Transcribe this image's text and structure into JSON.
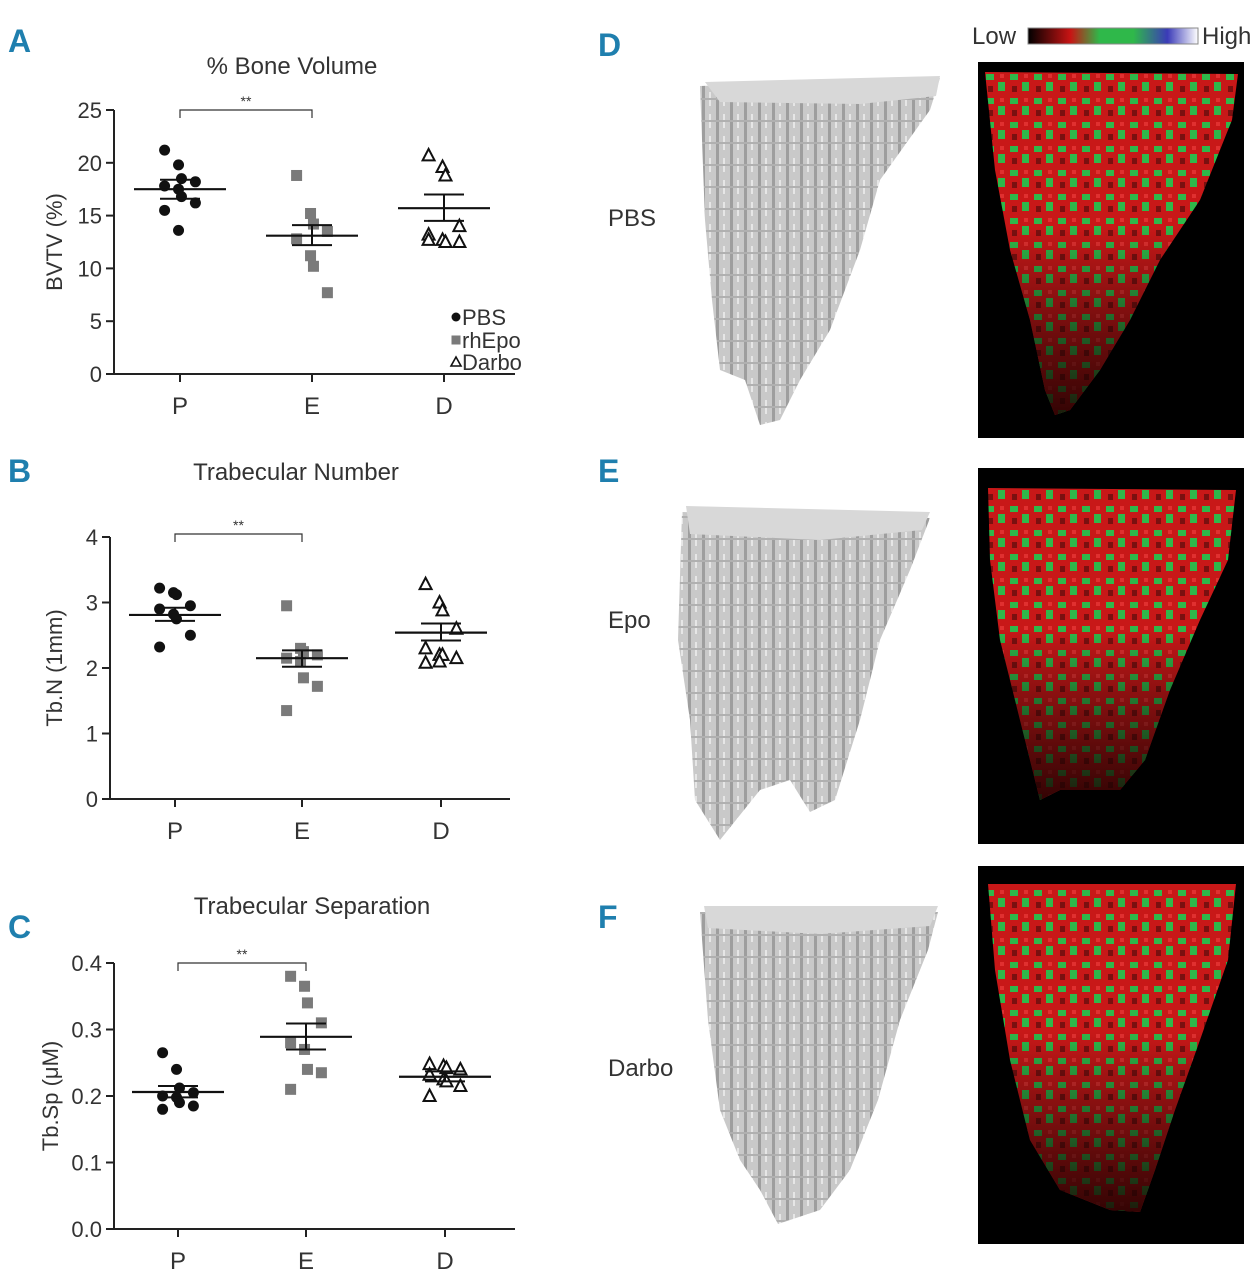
{
  "panel_labels": [
    "A",
    "B",
    "C",
    "D",
    "E",
    "F"
  ],
  "chart_data": [
    {
      "type": "scatter",
      "panel": "A",
      "title": "% Bone Volume",
      "ylabel": "BVTV (%)",
      "xlabel": "",
      "ylim": [
        0,
        25
      ],
      "yticks": [
        0,
        5,
        10,
        15,
        20,
        25
      ],
      "categories": [
        "P",
        "E",
        "D"
      ],
      "significance": {
        "from": "P",
        "to": "E",
        "label": "**"
      },
      "legend": [
        {
          "marker": "circle",
          "label": "PBS"
        },
        {
          "marker": "square",
          "label": "rhEpo"
        },
        {
          "marker": "triangle",
          "label": "Darbo"
        }
      ],
      "series": [
        {
          "name": "PBS",
          "category": "P",
          "marker": "circle",
          "values": [
            21.2,
            19.8,
            18.5,
            18.2,
            17.8,
            17.5,
            16.8,
            16.2,
            15.5,
            13.6
          ],
          "mean": 17.5,
          "sem_low": 16.6,
          "sem_high": 18.4
        },
        {
          "name": "rhEpo",
          "category": "E",
          "marker": "square",
          "values": [
            18.8,
            15.2,
            14.2,
            13.5,
            12.8,
            11.2,
            10.2,
            7.7
          ],
          "mean": 13.1,
          "sem_low": 12.2,
          "sem_high": 14.1
        },
        {
          "name": "Darbo",
          "category": "D",
          "marker": "triangle",
          "values": [
            20.7,
            19.6,
            18.8,
            14.0,
            13.2,
            12.7,
            12.5,
            12.5,
            12.7
          ],
          "mean": 15.7,
          "sem_low": 14.5,
          "sem_high": 17.0
        }
      ]
    },
    {
      "type": "scatter",
      "panel": "B",
      "title": "Trabecular Number",
      "ylabel": "Tb.N (1mm)",
      "xlabel": "",
      "ylim": [
        0,
        4
      ],
      "yticks": [
        0,
        1,
        2,
        3,
        4
      ],
      "categories": [
        "P",
        "E",
        "D"
      ],
      "significance": {
        "from": "P",
        "to": "E",
        "label": "**"
      },
      "series": [
        {
          "name": "PBS",
          "category": "P",
          "marker": "circle",
          "values": [
            3.22,
            3.15,
            3.12,
            2.95,
            2.9,
            2.82,
            2.75,
            2.5,
            2.32
          ],
          "mean": 2.81,
          "sem_low": 2.72,
          "sem_high": 2.92
        },
        {
          "name": "rhEpo",
          "category": "E",
          "marker": "square",
          "values": [
            2.95,
            2.3,
            2.25,
            2.2,
            2.15,
            2.1,
            1.85,
            1.72,
            1.35
          ],
          "mean": 2.15,
          "sem_low": 2.02,
          "sem_high": 2.27
        },
        {
          "name": "Darbo",
          "category": "D",
          "marker": "triangle",
          "values": [
            3.28,
            3.0,
            2.88,
            2.6,
            2.3,
            2.2,
            2.2,
            2.15,
            2.08,
            2.1
          ],
          "mean": 2.54,
          "sem_low": 2.42,
          "sem_high": 2.68
        }
      ]
    },
    {
      "type": "scatter",
      "panel": "C",
      "title": "Trabecular Separation",
      "ylabel": "Tb.Sp (μM)",
      "xlabel": "",
      "ylim": [
        0.0,
        0.4
      ],
      "yticks": [
        "0.0",
        "0.1",
        "0.2",
        "0.3",
        "0.4"
      ],
      "categories": [
        "P",
        "E",
        "D"
      ],
      "significance": {
        "from": "P",
        "to": "E",
        "label": "**"
      },
      "series": [
        {
          "name": "PBS",
          "category": "P",
          "marker": "circle",
          "values": [
            0.265,
            0.24,
            0.212,
            0.205,
            0.2,
            0.198,
            0.19,
            0.185,
            0.18
          ],
          "mean": 0.206,
          "sem_low": 0.198,
          "sem_high": 0.215
        },
        {
          "name": "rhEpo",
          "category": "E",
          "marker": "square",
          "values": [
            0.38,
            0.365,
            0.34,
            0.31,
            0.28,
            0.27,
            0.24,
            0.235,
            0.21
          ],
          "mean": 0.289,
          "sem_low": 0.27,
          "sem_high": 0.309
        },
        {
          "name": "Darbo",
          "category": "D",
          "marker": "triangle",
          "values": [
            0.248,
            0.245,
            0.242,
            0.24,
            0.232,
            0.225,
            0.222,
            0.215,
            0.2
          ],
          "mean": 0.229,
          "sem_low": 0.222,
          "sem_high": 0.237
        }
      ]
    }
  ],
  "images": {
    "row_labels": [
      "PBS",
      "Epo",
      "Darbo"
    ],
    "scale_low": "Low",
    "scale_high": "High",
    "colors": {
      "bone_gray": "#bdbdbd",
      "map_bg": "#000000",
      "map_red": "#d01818",
      "map_green": "#2fb84a",
      "map_dark": "#4a0a0a",
      "panel_label": "#1f7fae"
    }
  }
}
